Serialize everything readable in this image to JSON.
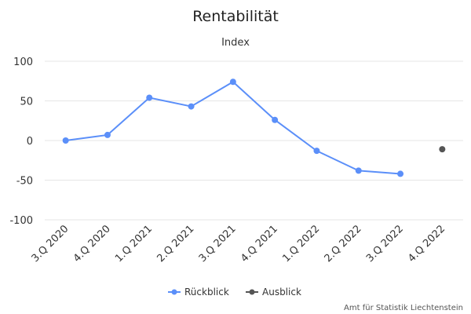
{
  "chart_data": {
    "type": "line",
    "title": "Rentabilität",
    "ylabel": "Index",
    "categories": [
      "3.Q 2020",
      "4.Q 2020",
      "1.Q 2021",
      "2.Q 2021",
      "3.Q 2021",
      "4.Q 2021",
      "1.Q 2022",
      "2.Q 2022",
      "3.Q 2022",
      "4.Q 2022"
    ],
    "series": [
      {
        "name": "Rückblick",
        "color": "#5b8ff9",
        "values": [
          0,
          7,
          54,
          43,
          74,
          26,
          -13,
          -38,
          -42,
          null
        ]
      },
      {
        "name": "Ausblick",
        "color": "#555555",
        "values": [
          null,
          null,
          null,
          null,
          null,
          null,
          null,
          null,
          null,
          -11
        ]
      }
    ],
    "ylim": [
      -100,
      100
    ],
    "yticks": [
      -100,
      -50,
      0,
      50,
      100
    ],
    "grid": true,
    "legend_position": "bottom-center"
  },
  "credit": "Amt für Statistik Liechtenstein"
}
